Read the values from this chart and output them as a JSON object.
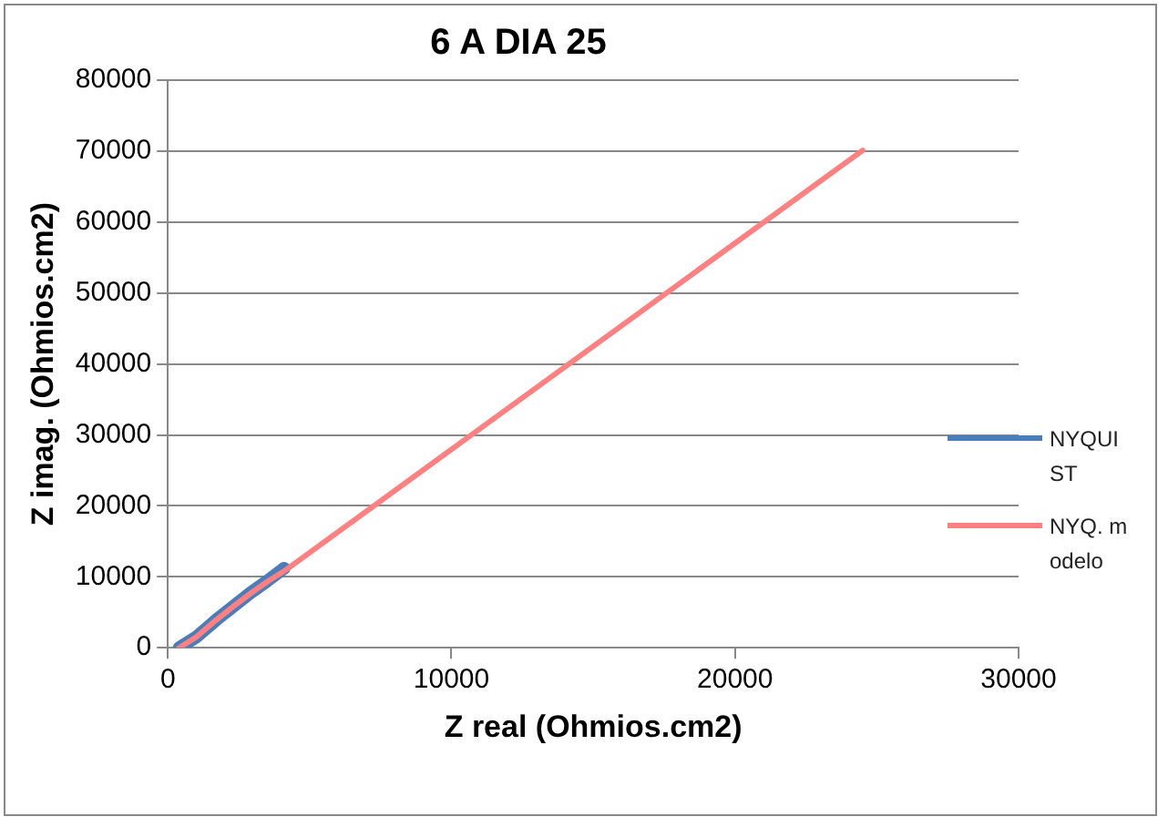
{
  "chart_data": {
    "type": "line",
    "title": "6 A DIA 25",
    "xlabel": "Z real (Ohmios.cm2)",
    "ylabel": "Z imag. (Ohmios.cm2)",
    "xlim": [
      0,
      30000
    ],
    "xticks": [
      0,
      10000,
      20000,
      30000
    ],
    "ylim": [
      0,
      80000
    ],
    "yticks": [
      0,
      10000,
      20000,
      30000,
      40000,
      50000,
      60000,
      70000,
      80000
    ],
    "grid": "y",
    "legend": "right",
    "marker": "none",
    "series": [
      {
        "name": "NYQUIST",
        "color": "#4a7ebb",
        "x": [
          400,
          1000,
          1700,
          2300,
          2900,
          3500,
          4100
        ],
        "values": [
          0,
          1500,
          3900,
          5800,
          7700,
          9400,
          11200
        ]
      },
      {
        "name": "NYQ. modelo",
        "color": "#ff8080",
        "x": [
          400,
          1000,
          1700,
          2300,
          2900,
          3500,
          4100,
          24500
        ],
        "values": [
          0,
          1500,
          3900,
          5800,
          7600,
          9300,
          10800,
          70100
        ]
      }
    ]
  }
}
